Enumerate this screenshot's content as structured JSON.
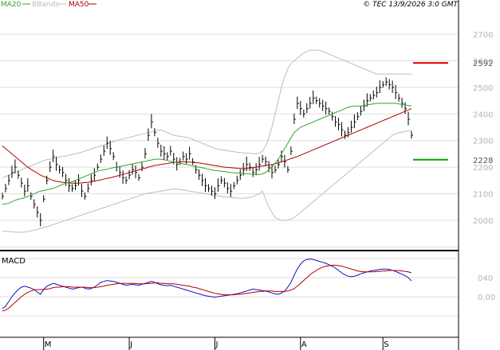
{
  "header": {
    "legend": [
      {
        "label": "MA20",
        "color": "#2fa52f"
      },
      {
        "label": "BBands",
        "color": "#bdbdbd"
      },
      {
        "label": "MA50",
        "color": "#b00000"
      }
    ],
    "copyright": "© TEC 13/9/2026 3:0 GMT"
  },
  "chart_data": [
    {
      "type": "line",
      "title": "",
      "y_axis": {
        "ticks": [
          2000,
          2100,
          2200,
          2300,
          2400,
          2500,
          2600,
          2700
        ],
        "ylim": [
          1900,
          2720
        ]
      },
      "x_axis": {
        "month_labels": [
          "M",
          "J",
          "J",
          "A",
          "S"
        ],
        "month_positions": [
          13,
          40,
          67,
          94,
          120
        ],
        "n_bars": 130
      },
      "grid": true,
      "price_closes": [
        2090,
        2120,
        2150,
        2180,
        2200,
        2170,
        2140,
        2110,
        2130,
        2090,
        2060,
        2030,
        2000,
        2080,
        2150,
        2200,
        2240,
        2210,
        2190,
        2180,
        2150,
        2130,
        2120,
        2130,
        2150,
        2110,
        2090,
        2120,
        2150,
        2170,
        2200,
        2230,
        2260,
        2290,
        2270,
        2240,
        2200,
        2180,
        2160,
        2150,
        2170,
        2190,
        2180,
        2160,
        2200,
        2250,
        2320,
        2370,
        2330,
        2290,
        2260,
        2250,
        2240,
        2260,
        2230,
        2210,
        2220,
        2240,
        2230,
        2250,
        2220,
        2190,
        2170,
        2150,
        2130,
        2120,
        2110,
        2100,
        2130,
        2150,
        2140,
        2120,
        2110,
        2130,
        2150,
        2170,
        2190,
        2210,
        2200,
        2180,
        2190,
        2210,
        2230,
        2220,
        2200,
        2180,
        2190,
        2210,
        2240,
        2220,
        2190,
        2260,
        2380,
        2440,
        2420,
        2400,
        2420,
        2440,
        2460,
        2450,
        2440,
        2430,
        2420,
        2410,
        2390,
        2370,
        2360,
        2340,
        2320,
        2330,
        2350,
        2370,
        2390,
        2410,
        2430,
        2450,
        2460,
        2470,
        2480,
        2500,
        2510,
        2520,
        2510,
        2500,
        2480,
        2460,
        2440,
        2420,
        2380,
        2320
      ],
      "ma20": [
        2060,
        2062,
        2065,
        2070,
        2075,
        2080,
        2082,
        2085,
        2090,
        2095,
        2100,
        2105,
        2110,
        2112,
        2115,
        2118,
        2120,
        2125,
        2130,
        2135,
        2140,
        2142,
        2145,
        2150,
        2155,
        2160,
        2165,
        2170,
        2175,
        2180,
        2185,
        2188,
        2190,
        2192,
        2195,
        2198,
        2200,
        2202,
        2205,
        2207,
        2210,
        2212,
        2215,
        2217,
        2220,
        2222,
        2225,
        2227,
        2230,
        2230,
        2230,
        2228,
        2225,
        2222,
        2220,
        2218,
        2215,
        2212,
        2210,
        2208,
        2205,
        2202,
        2200,
        2198,
        2195,
        2192,
        2190,
        2188,
        2186,
        2185,
        2184,
        2182,
        2180,
        2179,
        2178,
        2177,
        2176,
        2175,
        2174,
        2173,
        2172,
        2172,
        2175,
        2180,
        2190,
        2200,
        2215,
        2230,
        2250,
        2270,
        2290,
        2310,
        2330,
        2340,
        2350,
        2355,
        2360,
        2365,
        2370,
        2375,
        2380,
        2385,
        2390,
        2395,
        2400,
        2405,
        2410,
        2415,
        2420,
        2425,
        2428,
        2430,
        2430,
        2430,
        2432,
        2434,
        2436,
        2438,
        2440,
        2440,
        2440,
        2440,
        2440,
        2440,
        2440,
        2438,
        2436,
        2434,
        2432,
        2430
      ],
      "ma50": [
        2280,
        2270,
        2260,
        2250,
        2240,
        2230,
        2220,
        2210,
        2200,
        2192,
        2185,
        2178,
        2170,
        2165,
        2160,
        2155,
        2150,
        2147,
        2145,
        2143,
        2142,
        2141,
        2140,
        2140,
        2140,
        2141,
        2142,
        2143,
        2145,
        2147,
        2150,
        2152,
        2155,
        2158,
        2160,
        2163,
        2166,
        2170,
        2173,
        2176,
        2180,
        2183,
        2186,
        2190,
        2193,
        2196,
        2200,
        2203,
        2206,
        2208,
        2210,
        2212,
        2214,
        2216,
        2218,
        2219,
        2220,
        2220,
        2220,
        2219,
        2218,
        2217,
        2216,
        2214,
        2212,
        2210,
        2208,
        2206,
        2204,
        2202,
        2200,
        2199,
        2198,
        2197,
        2196,
        2195,
        2195,
        2196,
        2197,
        2198,
        2200,
        2202,
        2204,
        2206,
        2208,
        2210,
        2213,
        2216,
        2220,
        2224,
        2228,
        2232,
        2236,
        2240,
        2245,
        2250,
        2255,
        2260,
        2265,
        2270,
        2275,
        2280,
        2285,
        2290,
        2295,
        2300,
        2305,
        2310,
        2315,
        2320,
        2325,
        2330,
        2335,
        2340,
        2345,
        2350,
        2355,
        2360,
        2365,
        2370,
        2375,
        2380,
        2385,
        2390,
        2395,
        2400,
        2405,
        2410,
        2415,
        2420
      ],
      "bb_upper": [
        2160,
        2165,
        2170,
        2175,
        2180,
        2185,
        2190,
        2195,
        2200,
        2205,
        2210,
        2215,
        2220,
        2225,
        2228,
        2230,
        2232,
        2235,
        2238,
        2240,
        2242,
        2245,
        2248,
        2250,
        2253,
        2256,
        2260,
        2264,
        2268,
        2272,
        2276,
        2280,
        2284,
        2288,
        2292,
        2296,
        2300,
        2303,
        2306,
        2309,
        2312,
        2315,
        2318,
        2321,
        2324,
        2327,
        2330,
        2333,
        2336,
        2338,
        2340,
        2335,
        2330,
        2325,
        2320,
        2318,
        2316,
        2314,
        2312,
        2310,
        2305,
        2300,
        2295,
        2290,
        2285,
        2280,
        2275,
        2270,
        2268,
        2266,
        2264,
        2262,
        2260,
        2258,
        2256,
        2255,
        2254,
        2253,
        2252,
        2251,
        2250,
        2252,
        2260,
        2280,
        2310,
        2350,
        2400,
        2450,
        2500,
        2540,
        2570,
        2590,
        2600,
        2610,
        2620,
        2630,
        2635,
        2640,
        2640,
        2640,
        2640,
        2635,
        2630,
        2625,
        2620,
        2615,
        2610,
        2605,
        2600,
        2595,
        2590,
        2585,
        2580,
        2575,
        2570,
        2565,
        2560,
        2555,
        2550,
        2550,
        2550,
        2550,
        2550,
        2550,
        2550,
        2550,
        2550,
        2550,
        2550,
        2550
      ],
      "bb_lower": [
        1960,
        1959,
        1958,
        1957,
        1956,
        1955,
        1955,
        1956,
        1958,
        1960,
        1963,
        1966,
        1970,
        1973,
        1976,
        1980,
        1984,
        1988,
        1992,
        1996,
        2000,
        2004,
        2008,
        2012,
        2016,
        2020,
        2024,
        2028,
        2032,
        2036,
        2040,
        2044,
        2048,
        2052,
        2056,
        2060,
        2064,
        2068,
        2072,
        2076,
        2080,
        2084,
        2088,
        2092,
        2096,
        2100,
        2102,
        2104,
        2106,
        2108,
        2110,
        2112,
        2114,
        2116,
        2118,
        2118,
        2116,
        2114,
        2112,
        2110,
        2108,
        2106,
        2104,
        2102,
        2100,
        2098,
        2096,
        2094,
        2092,
        2090,
        2088,
        2087,
        2086,
        2085,
        2084,
        2083,
        2083,
        2084,
        2086,
        2090,
        2095,
        2100,
        2110,
        2080,
        2050,
        2030,
        2010,
        2005,
        2000,
        2000,
        2000,
        2005,
        2010,
        2020,
        2030,
        2040,
        2050,
        2060,
        2070,
        2080,
        2090,
        2100,
        2110,
        2120,
        2130,
        2140,
        2150,
        2160,
        2170,
        2180,
        2190,
        2200,
        2210,
        2220,
        2230,
        2240,
        2250,
        2260,
        2270,
        2280,
        2290,
        2300,
        2310,
        2320,
        2325,
        2330,
        2332,
        2334,
        2336,
        2338
      ],
      "annotations": [
        {
          "label": "2592",
          "value": 2592,
          "color": "#e00000"
        },
        {
          "label": "2228",
          "value": 2228,
          "color": "#00a000"
        }
      ]
    },
    {
      "type": "line",
      "title": "MACD",
      "y_axis": {
        "ticks": [
          0,
          40
        ],
        "tick_labels": [
          "0.00",
          "040"
        ],
        "ylim": [
          -35,
          83
        ]
      },
      "grid": true,
      "series": [
        {
          "color": "#1010c0",
          "values": [
            -25,
            -20,
            -10,
            0,
            8,
            15,
            20,
            22,
            20,
            18,
            15,
            10,
            5,
            15,
            22,
            25,
            28,
            26,
            24,
            22,
            20,
            18,
            16,
            17,
            19,
            20,
            18,
            16,
            17,
            20,
            25,
            30,
            32,
            34,
            33,
            32,
            30,
            28,
            26,
            24,
            25,
            26,
            25,
            24,
            26,
            28,
            30,
            32,
            30,
            27,
            25,
            24,
            23,
            24,
            22,
            20,
            18,
            16,
            14,
            12,
            10,
            8,
            6,
            4,
            2,
            1,
            0,
            -1,
            0,
            1,
            2,
            3,
            4,
            5,
            6,
            8,
            10,
            12,
            14,
            16,
            15,
            14,
            13,
            12,
            10,
            8,
            6,
            5,
            8,
            12,
            20,
            30,
            45,
            58,
            68,
            75,
            78,
            79,
            78,
            76,
            74,
            72,
            70,
            67,
            64,
            60,
            55,
            50,
            46,
            43,
            42,
            43,
            45,
            48,
            50,
            52,
            54,
            55,
            56,
            57,
            58,
            58,
            57,
            55,
            53,
            50,
            47,
            44,
            40,
            33
          ]
        },
        {
          "color": "#b00000",
          "values": [
            -30,
            -28,
            -24,
            -18,
            -12,
            -6,
            0,
            5,
            9,
            12,
            14,
            15,
            15,
            15,
            16,
            17,
            19,
            20,
            20,
            21,
            21,
            21,
            20,
            20,
            20,
            20,
            20,
            19,
            19,
            19,
            20,
            21,
            22,
            24,
            25,
            26,
            27,
            28,
            28,
            28,
            28,
            28,
            28,
            27,
            27,
            27,
            28,
            28,
            29,
            29,
            28,
            28,
            27,
            27,
            27,
            26,
            25,
            24,
            23,
            22,
            20,
            19,
            17,
            15,
            13,
            11,
            9,
            7,
            6,
            5,
            4,
            4,
            4,
            4,
            5,
            5,
            6,
            7,
            8,
            9,
            10,
            11,
            11,
            12,
            12,
            12,
            11,
            11,
            11,
            11,
            12,
            14,
            17,
            22,
            28,
            34,
            40,
            46,
            51,
            55,
            59,
            62,
            64,
            65,
            66,
            66,
            65,
            64,
            62,
            60,
            58,
            56,
            54,
            53,
            52,
            52,
            52,
            52,
            53,
            53,
            54,
            54,
            55,
            55,
            55,
            55,
            54,
            53,
            52,
            50
          ]
        }
      ]
    }
  ]
}
